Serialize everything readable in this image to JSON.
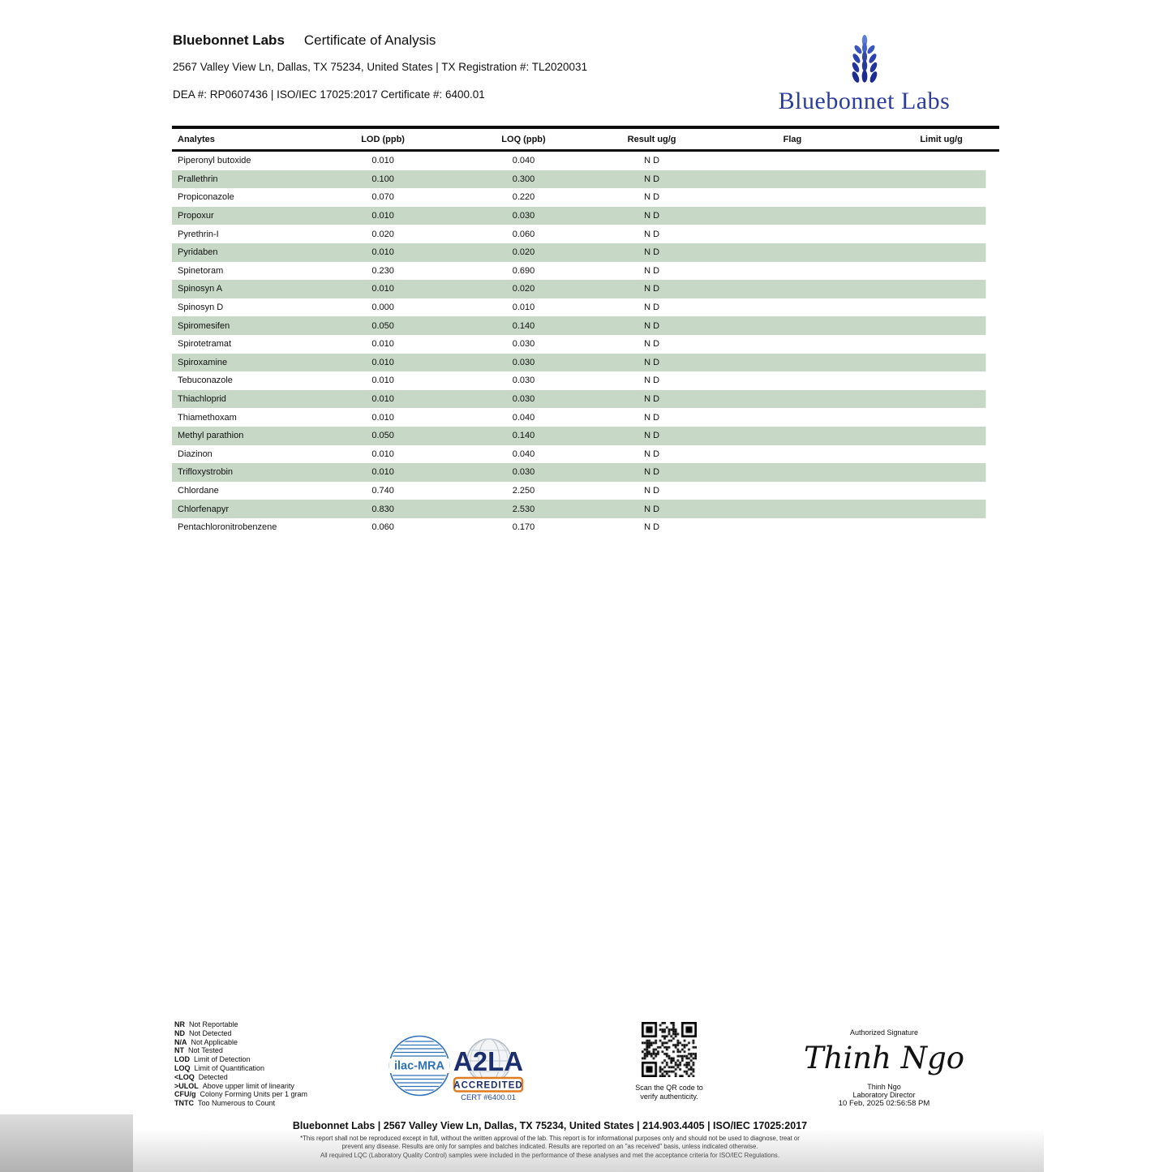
{
  "header": {
    "company": "Bluebonnet Labs",
    "doc_title": "Certificate of Analysis",
    "address_line": "2567 Valley View Ln, Dallas, TX 75234, United States | TX Registration #: TL2020031",
    "dea_line": "DEA #: RP0607436 | ISO/IEC 17025:2017 Certificate #: 6400.01"
  },
  "logo": {
    "name": "Bluebonnet Labs",
    "blue": "#2b3c9e"
  },
  "table": {
    "headers": [
      "Analytes",
      "LOD (ppb)",
      "LOQ (ppb)",
      "Result ug/g",
      "Flag",
      "Limit ug/g"
    ],
    "stripe_color": "#c7d8c7",
    "rows": [
      {
        "analyte": "Piperonyl butoxide",
        "lod": "0.010",
        "loq": "0.040",
        "result": "N D",
        "flag": "",
        "limit": ""
      },
      {
        "analyte": "Prallethrin",
        "lod": "0.100",
        "loq": "0.300",
        "result": "N D",
        "flag": "",
        "limit": ""
      },
      {
        "analyte": "Propiconazole",
        "lod": "0.070",
        "loq": "0.220",
        "result": "N D",
        "flag": "",
        "limit": ""
      },
      {
        "analyte": "Propoxur",
        "lod": "0.010",
        "loq": "0.030",
        "result": "N D",
        "flag": "",
        "limit": ""
      },
      {
        "analyte": "Pyrethrin-I",
        "lod": "0.020",
        "loq": "0.060",
        "result": "N D",
        "flag": "",
        "limit": ""
      },
      {
        "analyte": "Pyridaben",
        "lod": "0.010",
        "loq": "0.020",
        "result": "N D",
        "flag": "",
        "limit": ""
      },
      {
        "analyte": "Spinetoram",
        "lod": "0.230",
        "loq": "0.690",
        "result": "N D",
        "flag": "",
        "limit": ""
      },
      {
        "analyte": "Spinosyn A",
        "lod": "0.010",
        "loq": "0.020",
        "result": "N D",
        "flag": "",
        "limit": ""
      },
      {
        "analyte": "Spinosyn D",
        "lod": "0.000",
        "loq": "0.010",
        "result": "N D",
        "flag": "",
        "limit": ""
      },
      {
        "analyte": "Spiromesifen",
        "lod": "0.050",
        "loq": "0.140",
        "result": "N D",
        "flag": "",
        "limit": ""
      },
      {
        "analyte": "Spirotetramat",
        "lod": "0.010",
        "loq": "0.030",
        "result": "N D",
        "flag": "",
        "limit": ""
      },
      {
        "analyte": "Spiroxamine",
        "lod": "0.010",
        "loq": "0.030",
        "result": "N D",
        "flag": "",
        "limit": ""
      },
      {
        "analyte": "Tebuconazole",
        "lod": "0.010",
        "loq": "0.030",
        "result": "N D",
        "flag": "",
        "limit": ""
      },
      {
        "analyte": "Thiachloprid",
        "lod": "0.010",
        "loq": "0.030",
        "result": "N D",
        "flag": "",
        "limit": ""
      },
      {
        "analyte": "Thiamethoxam",
        "lod": "0.010",
        "loq": "0.040",
        "result": "N D",
        "flag": "",
        "limit": ""
      },
      {
        "analyte": "Methyl parathion",
        "lod": "0.050",
        "loq": "0.140",
        "result": "N D",
        "flag": "",
        "limit": ""
      },
      {
        "analyte": "Diazinon",
        "lod": "0.010",
        "loq": "0.040",
        "result": "N D",
        "flag": "",
        "limit": ""
      },
      {
        "analyte": "Trifloxystrobin",
        "lod": "0.010",
        "loq": "0.030",
        "result": "N D",
        "flag": "",
        "limit": ""
      },
      {
        "analyte": "Chlordane",
        "lod": "0.740",
        "loq": "2.250",
        "result": "N D",
        "flag": "",
        "limit": ""
      },
      {
        "analyte": "Chlorfenapyr",
        "lod": "0.830",
        "loq": "2.530",
        "result": "N D",
        "flag": "",
        "limit": ""
      },
      {
        "analyte": "Pentachloronitrobenzene",
        "lod": "0.060",
        "loq": "0.170",
        "result": "N D",
        "flag": "",
        "limit": ""
      }
    ]
  },
  "legend": {
    "items": [
      {
        "abbr": "NR",
        "desc": "Not Reportable"
      },
      {
        "abbr": "ND",
        "desc": "Not Detected"
      },
      {
        "abbr": "N/A",
        "desc": "Not Applicable"
      },
      {
        "abbr": "NT",
        "desc": "Not Tested"
      },
      {
        "abbr": "LOD",
        "desc": "Limit of Detection"
      },
      {
        "abbr": "LOQ",
        "desc": "Limit of Quantification"
      },
      {
        "abbr": "<LOQ",
        "desc": "Detected"
      },
      {
        "abbr": ">ULOL",
        "desc": "Above upper limit of linearity"
      },
      {
        "abbr": "CFU/g",
        "desc": "Colony Forming Units per 1 gram"
      },
      {
        "abbr": "TNTC",
        "desc": "Too Numerous to Count"
      }
    ]
  },
  "accreditation": {
    "ilac_label": "ilac-MRA",
    "a2la_label": "A2LA",
    "accredited_label": "ACCREDITED",
    "cert_number": "CERT #6400.01",
    "ilac_blue": "#2f72b8",
    "a2la_navy": "#1b2f6e",
    "a2la_orange": "#e07b20"
  },
  "qr": {
    "caption_line1": "Scan the QR code to",
    "caption_line2": "verify authenticity."
  },
  "signature": {
    "label": "Authorized Signature",
    "script": "Thinh Ngo",
    "name": "Thinh Ngo",
    "title": "Laboratory Director",
    "datetime": "10 Feb, 2025 02:56:58 PM"
  },
  "footer": {
    "bold_line": "Bluebonnet Labs | 2567 Valley View Ln, Dallas, TX 75234, United States | 214.903.4405 | ISO/IEC 17025:2017",
    "fine_print": [
      "*This report shall not be reproduced except in full, without the written approval of the lab. This report is for informational purposes only and should not be used to diagnose, treat or",
      "prevent any disease. Results are only for samples and batches indicated. Results are reported on an \"as received\" basis, unless indicated otherwise.",
      "All required LQC (Laboratory Quality Control) samples were included in the performance of these analyses and met the acceptance criteria for ISO/IEC Regulations."
    ]
  }
}
